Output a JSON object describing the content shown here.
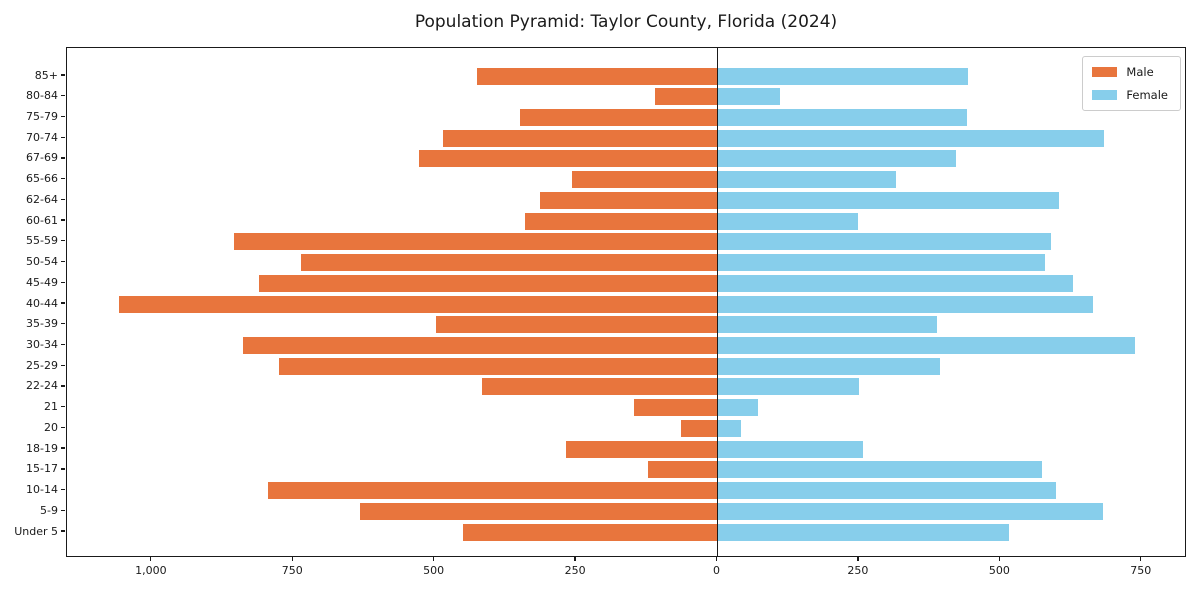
{
  "chart_data": {
    "type": "bar",
    "subtype": "population-pyramid",
    "title": "Population Pyramid: Taylor County, Florida (2024)",
    "xlabel": "",
    "ylabel": "",
    "grid": false,
    "legend_position": "upper right",
    "xlim": [
      -1150,
      830
    ],
    "categories": [
      "85+",
      "80-84",
      "75-79",
      "70-74",
      "67-69",
      "65-66",
      "62-64",
      "60-61",
      "55-59",
      "50-54",
      "45-49",
      "40-44",
      "35-39",
      "30-34",
      "25-29",
      "22-24",
      "21",
      "20",
      "18-19",
      "15-17",
      "10-14",
      "5-9",
      "Under 5"
    ],
    "series": [
      {
        "name": "Male",
        "side": "left",
        "color": "#e8753d",
        "values": [
          425,
          110,
          350,
          485,
          527,
          257,
          313,
          340,
          855,
          737,
          810,
          1058,
          497,
          838,
          776,
          417,
          147,
          64,
          267,
          122,
          795,
          632,
          450
        ]
      },
      {
        "name": "Female",
        "side": "right",
        "color": "#87ceeb",
        "values": [
          443,
          111,
          441,
          683,
          422,
          316,
          603,
          249,
          589,
          579,
          629,
          664,
          388,
          738,
          393,
          251,
          72,
          42,
          257,
          574,
          599,
          682,
          516
        ]
      }
    ],
    "x_ticks": [
      {
        "value": -1000,
        "label": "1,000"
      },
      {
        "value": -750,
        "label": "750"
      },
      {
        "value": -500,
        "label": "500"
      },
      {
        "value": -250,
        "label": "250"
      },
      {
        "value": 0,
        "label": "0"
      },
      {
        "value": 250,
        "label": "250"
      },
      {
        "value": 500,
        "label": "500"
      },
      {
        "value": 750,
        "label": "750"
      }
    ]
  },
  "colors": {
    "spine": "#1a1a1a",
    "background": "#ffffff"
  }
}
